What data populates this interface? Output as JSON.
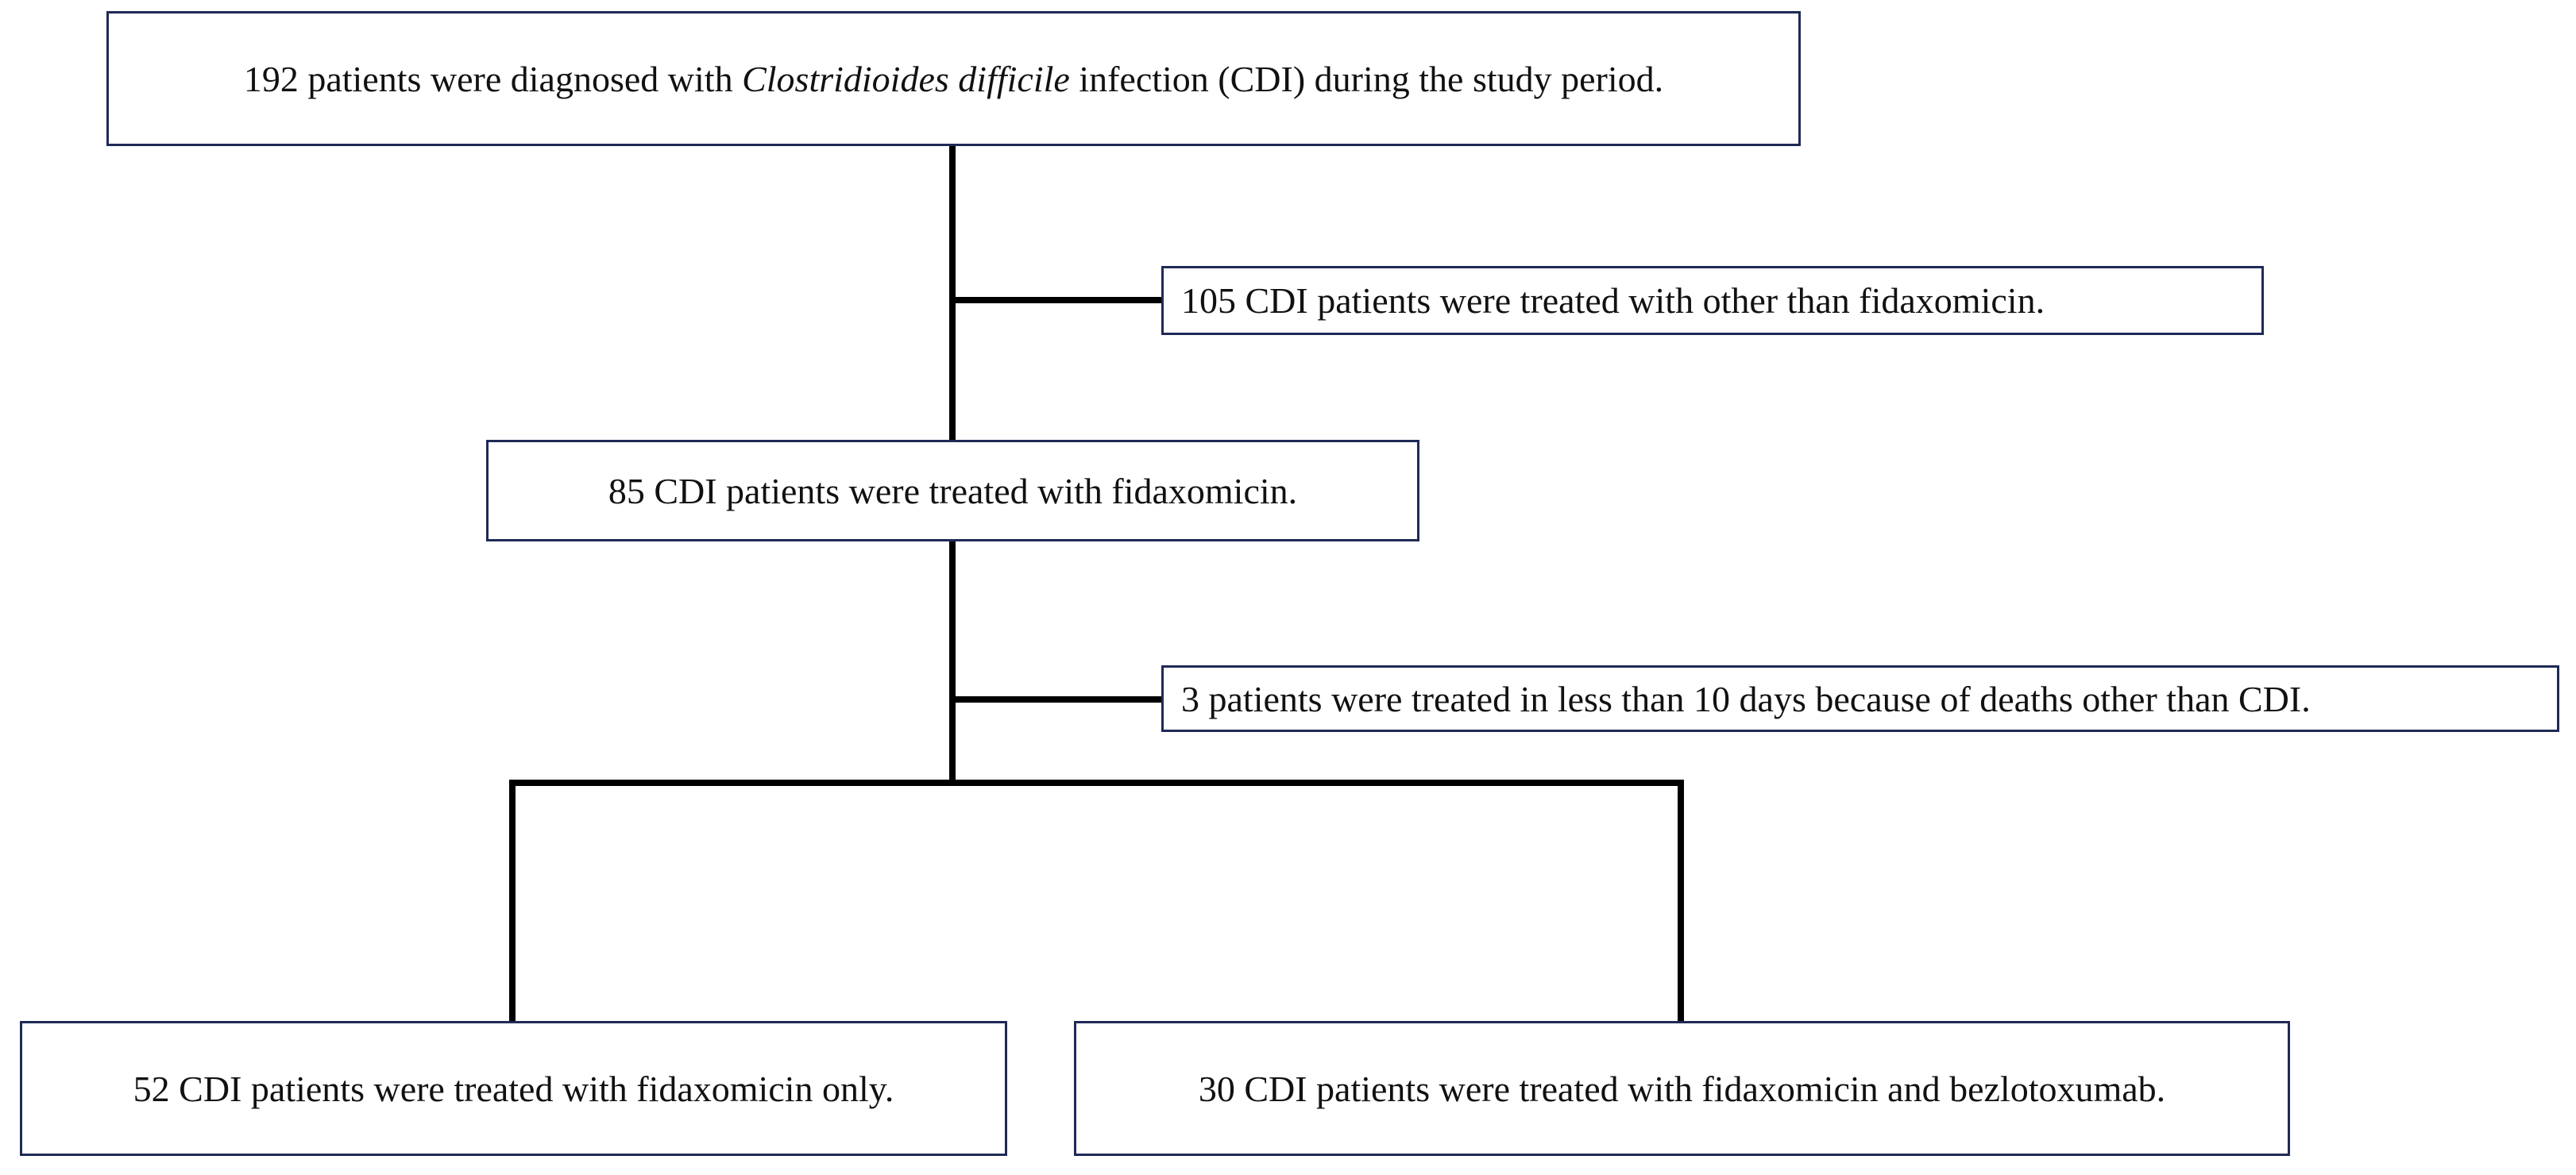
{
  "nodes": [
    {
      "segments": [
        {
          "text": "192 patients were diagnosed with ",
          "italic": false
        },
        {
          "text": "Clostridioides difficile",
          "italic": true
        },
        {
          "text": " infection (CDI) during the study period.",
          "italic": false
        }
      ]
    },
    {
      "segments": [
        {
          "text": "105 CDI patients were treated with other than fidaxomicin.",
          "italic": false
        }
      ]
    },
    {
      "segments": [
        {
          "text": "85 CDI patients were treated with fidaxomicin.",
          "italic": false
        }
      ]
    },
    {
      "segments": [
        {
          "text": "3 patients were treated in less than 10 days because of deaths other than CDI.",
          "italic": false
        }
      ]
    },
    {
      "segments": [
        {
          "text": "52 CDI patients were treated with fidaxomicin only.",
          "italic": false
        }
      ]
    },
    {
      "segments": [
        {
          "text": "30 CDI patients were treated with fidaxomicin and bezlotoxumab.",
          "italic": false
        }
      ]
    }
  ]
}
